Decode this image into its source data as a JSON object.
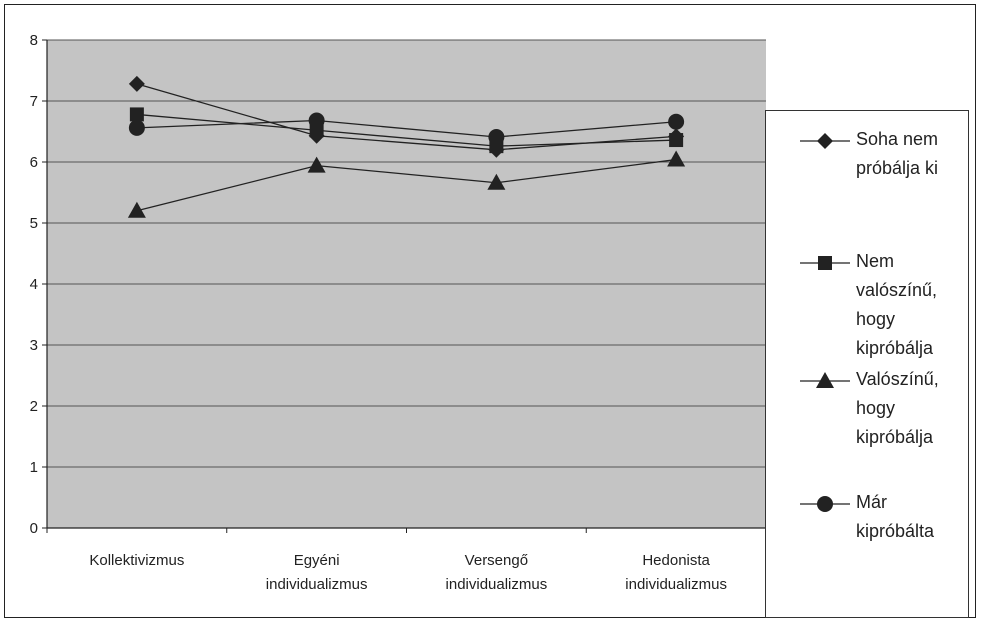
{
  "chart_data": {
    "type": "line",
    "categories": [
      "Kollektivizmus",
      "Egyéni individualizmus",
      "Versengő individualizmus",
      "Hedonista individualizmus"
    ],
    "category_lines": [
      [
        "Kollektivizmus"
      ],
      [
        "Egyéni",
        "individualizmus"
      ],
      [
        "Versengő",
        "individualizmus"
      ],
      [
        "Hedonista",
        "individualizmus"
      ]
    ],
    "series": [
      {
        "name": "Soha nem próbálja ki",
        "name_lines": [
          "Soha nem",
          "próbálja ki"
        ],
        "marker": "diamond",
        "values": [
          7.28,
          6.43,
          6.2,
          6.42
        ]
      },
      {
        "name": "Nem valószínű, hogy kipróbálja",
        "name_lines": [
          "Nem",
          "valószínű,",
          "hogy",
          "kipróbálja"
        ],
        "marker": "square",
        "values": [
          6.78,
          6.52,
          6.26,
          6.36
        ]
      },
      {
        "name": "Valószínű, hogy kipróbálja",
        "name_lines": [
          "Valószínű,",
          "hogy",
          "kipróbálja"
        ],
        "marker": "triangle",
        "values": [
          5.2,
          5.94,
          5.66,
          6.04
        ]
      },
      {
        "name": "Már kipróbálta",
        "name_lines": [
          "Már",
          "kipróbálta"
        ],
        "marker": "circle",
        "values": [
          6.56,
          6.68,
          6.41,
          6.66
        ]
      }
    ],
    "ylim": [
      0,
      8
    ],
    "yticks": [
      "0",
      "1",
      "2",
      "3",
      "4",
      "5",
      "6",
      "7",
      "8"
    ],
    "grid": true,
    "legend_position": "right",
    "colors": {
      "line": "#222222",
      "plot_bg": "#c4c4c4",
      "grid": "#555555"
    }
  }
}
